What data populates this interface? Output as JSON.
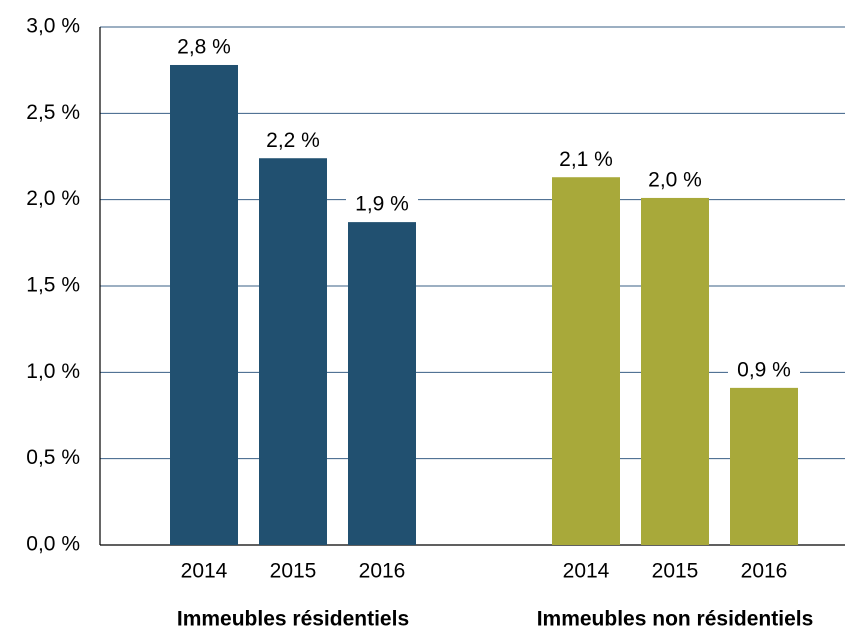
{
  "chart_data": {
    "type": "bar",
    "ylim": [
      0,
      3
    ],
    "yticks": [
      {
        "value": 0,
        "label": "0,0 %"
      },
      {
        "value": 0.5,
        "label": "0,5 %"
      },
      {
        "value": 1,
        "label": "1,0 %"
      },
      {
        "value": 1.5,
        "label": "1,5 %"
      },
      {
        "value": 2,
        "label": "2,0 %"
      },
      {
        "value": 2.5,
        "label": "2,5 %"
      },
      {
        "value": 3,
        "label": "3,0 %"
      }
    ],
    "grid": true,
    "series": [
      {
        "name": "Immeubles résidentiels",
        "color": "#215070",
        "categories": [
          "2014",
          "2015",
          "2016"
        ],
        "values": [
          2.78,
          2.24,
          1.87
        ],
        "value_labels": [
          "2,8 %",
          "2,2 %",
          "1,9 %"
        ]
      },
      {
        "name": "Immeubles non résidentiels",
        "color": "#a8a93a",
        "categories": [
          "2014",
          "2015",
          "2016"
        ],
        "values": [
          2.13,
          2.01,
          0.91
        ],
        "value_labels": [
          "2,1 %",
          "2,0 %",
          "0,9 %"
        ]
      }
    ]
  }
}
